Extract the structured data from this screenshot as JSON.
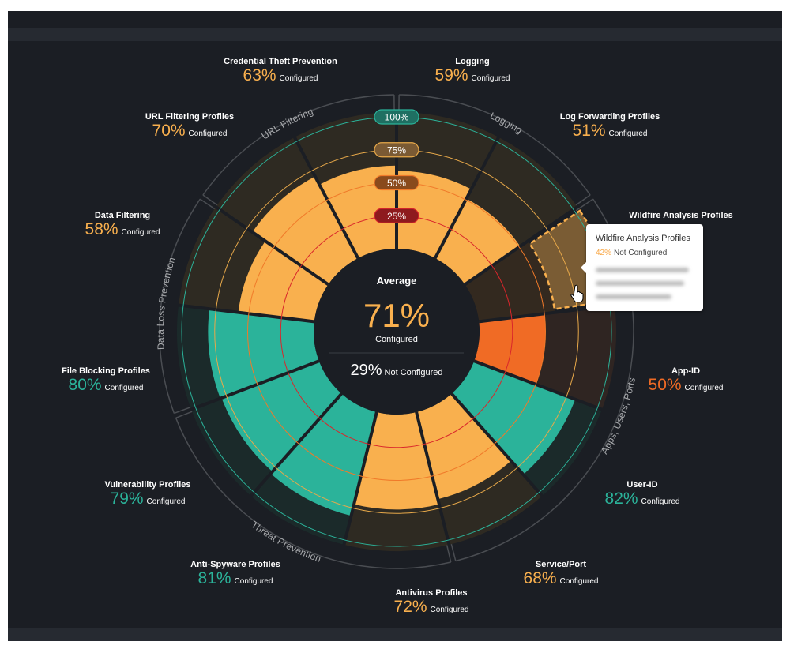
{
  "chart_data": {
    "type": "polar-bar",
    "title": "Average",
    "average": {
      "configured_pct": 71,
      "configured_label": "Configured",
      "not_configured_pct": 29,
      "not_configured_label": "Not Configured"
    },
    "rings": [
      {
        "label": "25%",
        "value": 25,
        "color": "#d9262b",
        "pill": "#8e1a1e"
      },
      {
        "label": "50%",
        "value": 50,
        "color": "#f07a2a",
        "pill": "#8a4a1c"
      },
      {
        "label": "75%",
        "value": 75,
        "color": "#e8a94a",
        "pill": "#7a5a34"
      },
      {
        "label": "100%",
        "value": 100,
        "color": "#2bb39a",
        "pill": "#1f6f62"
      }
    ],
    "segments": [
      {
        "name": "Logging",
        "value": 59,
        "pct_text": "59%",
        "color": "#f9b04e",
        "group": "Logging"
      },
      {
        "name": "Log Forwarding Profiles",
        "value": 51,
        "pct_text": "51%",
        "color": "#f9b04e",
        "group": "Logging"
      },
      {
        "name": "Wildfire Analysis Profiles",
        "value": 58,
        "color": "#f9b04e",
        "group": "Apps, Users, Ports",
        "hovered": true
      },
      {
        "name": "App-ID",
        "value": 50,
        "pct_text": "50%",
        "color": "#f06b25",
        "group": "Apps, Users, Ports"
      },
      {
        "name": "User-ID",
        "value": 82,
        "pct_text": "82%",
        "color": "#2bb39a",
        "group": "Apps, Users, Ports"
      },
      {
        "name": "Service/Port",
        "value": 68,
        "pct_text": "68%",
        "color": "#f9b04e",
        "group": "Apps, Users, Ports"
      },
      {
        "name": "Antivirus Profiles",
        "value": 72,
        "pct_text": "72%",
        "color": "#f9b04e",
        "group": "Threat Prevention"
      },
      {
        "name": "Anti-Spyware Profiles",
        "value": 81,
        "pct_text": "81%",
        "color": "#2bb39a",
        "group": "Threat Prevention"
      },
      {
        "name": "Vulnerability Profiles",
        "value": 79,
        "pct_text": "79%",
        "color": "#2bb39a",
        "group": "Threat Prevention"
      },
      {
        "name": "File Blocking Profiles",
        "value": 80,
        "pct_text": "80%",
        "color": "#2bb39a",
        "group": "Data Loss Prevention"
      },
      {
        "name": "Data Filtering",
        "value": 58,
        "pct_text": "58%",
        "color": "#f9b04e",
        "group": "Data Loss Prevention"
      },
      {
        "name": "URL Filtering Profiles",
        "value": 70,
        "pct_text": "70%",
        "color": "#f9b04e",
        "group": "URL Filtering"
      },
      {
        "name": "Credential Theft Prevention",
        "value": 63,
        "pct_text": "63%",
        "color": "#f9b04e",
        "group": "URL Filtering"
      }
    ],
    "groups": [
      {
        "name": "Logging",
        "from": 0,
        "to": 2
      },
      {
        "name": "Apps, Users, Ports",
        "from": 2,
        "to": 6
      },
      {
        "name": "Threat Prevention",
        "from": 6,
        "to": 9
      },
      {
        "name": "Data Loss Prevention",
        "from": 9,
        "to": 11
      },
      {
        "name": "URL Filtering",
        "from": 11,
        "to": 13
      }
    ],
    "configured_label": "Configured"
  },
  "tooltip": {
    "title": "Wildfire Analysis Profiles",
    "pct": "42%",
    "status": "Not Configured"
  }
}
